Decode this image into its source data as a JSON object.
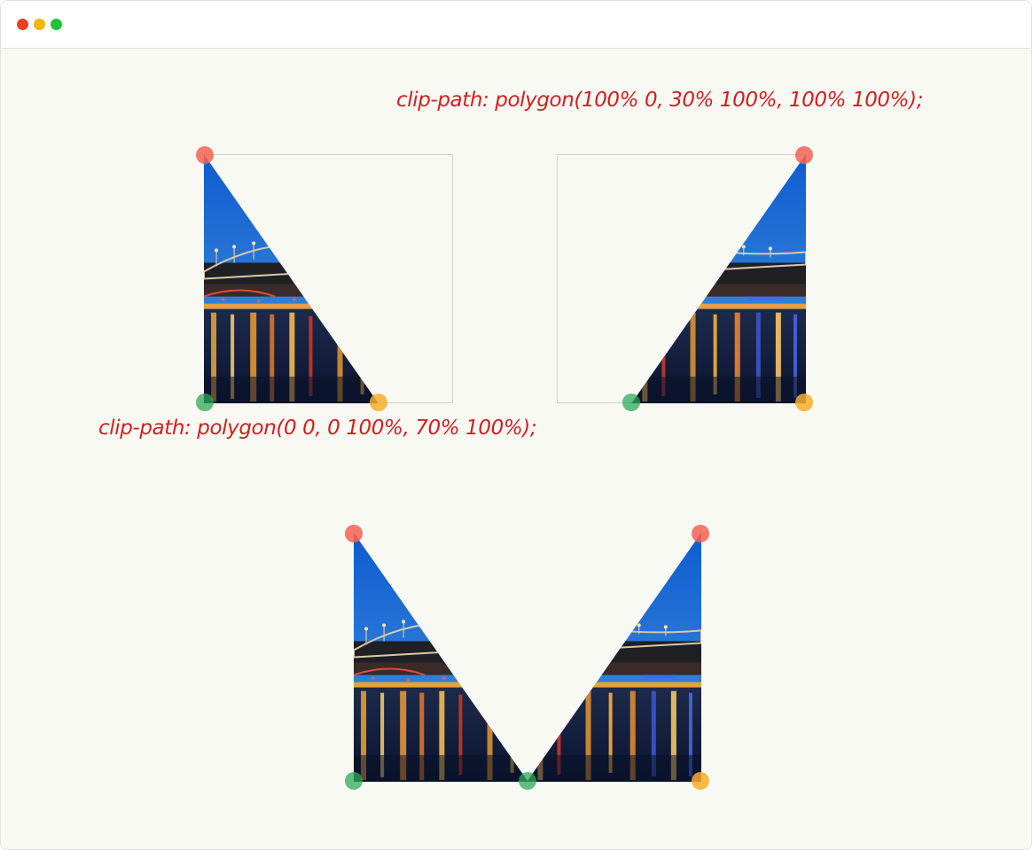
{
  "window": {
    "controls": [
      "close-dot",
      "minimize-dot",
      "zoom-dot"
    ],
    "colors": {
      "close": "#e8411f",
      "minimize": "#f5b400",
      "zoom": "#22c13a"
    }
  },
  "labels": {
    "right_triangle": "clip-path: polygon(100% 0, 30% 100%, 100% 100%);",
    "left_triangle": "clip-path: polygon(0 0, 0 100%, 70% 100%);"
  },
  "marker_colors": {
    "top": "#f66252",
    "bottom_left": "#2eaa5a",
    "bottom_right": "#f8af28"
  },
  "label_color": "#d11f1f",
  "image": {
    "subject": "night-river-bridge-photo",
    "colors": {
      "sky_top": "#1a5fc4",
      "sky_bottom": "#5a8fd0",
      "water": "#0d1a3a",
      "bridge": "#2a2a2e"
    }
  }
}
